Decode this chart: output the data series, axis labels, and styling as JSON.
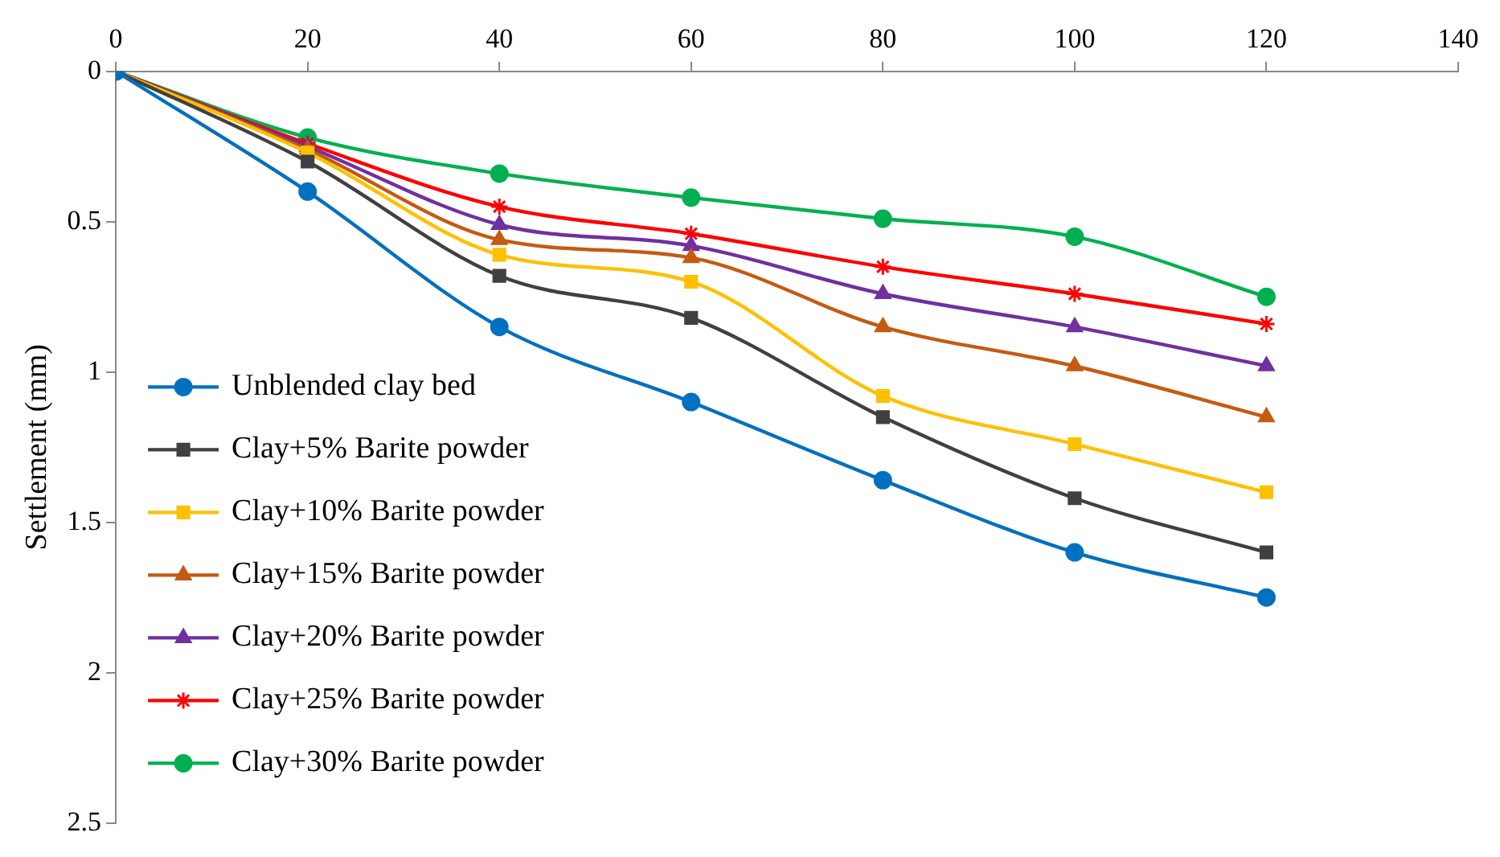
{
  "chart_data": {
    "type": "line",
    "ylabel": "Settlement (mm)",
    "x": [
      0,
      20,
      40,
      60,
      80,
      100,
      120
    ],
    "xlim": [
      0,
      140
    ],
    "xticks": [
      0,
      20,
      40,
      60,
      80,
      100,
      120,
      140
    ],
    "ylim": [
      2.5,
      0
    ],
    "yticks": [
      0,
      0.5,
      1,
      1.5,
      2,
      2.5
    ],
    "grid": false,
    "legend": "left",
    "series": [
      {
        "name": "Unblended clay bed",
        "color": "#0070c0",
        "marker": "circle",
        "values": [
          0,
          0.4,
          0.85,
          1.1,
          1.36,
          1.6,
          1.75
        ]
      },
      {
        "name": "Clay+5% Barite powder",
        "color": "#404040",
        "marker": "square",
        "values": [
          0,
          0.3,
          0.68,
          0.82,
          1.15,
          1.42,
          1.6
        ]
      },
      {
        "name": "Clay+10% Barite powder",
        "color": "#ffc000",
        "marker": "square",
        "values": [
          0,
          0.27,
          0.61,
          0.7,
          1.08,
          1.24,
          1.4
        ]
      },
      {
        "name": "Clay+15% Barite powder",
        "color": "#c55a11",
        "marker": "triangle",
        "values": [
          0,
          0.26,
          0.56,
          0.62,
          0.85,
          0.98,
          1.15
        ]
      },
      {
        "name": "Clay+20% Barite powder",
        "color": "#7030a0",
        "marker": "triangle",
        "values": [
          0,
          0.25,
          0.51,
          0.58,
          0.74,
          0.85,
          0.98
        ]
      },
      {
        "name": "Clay+25% Barite powder",
        "color": "#ff0000",
        "marker": "cross",
        "values": [
          0,
          0.24,
          0.45,
          0.54,
          0.65,
          0.74,
          0.84
        ]
      },
      {
        "name": "Clay+30% Barite powder",
        "color": "#00b050",
        "marker": "circle",
        "values": [
          0,
          0.22,
          0.34,
          0.42,
          0.49,
          0.55,
          0.75
        ]
      }
    ]
  }
}
